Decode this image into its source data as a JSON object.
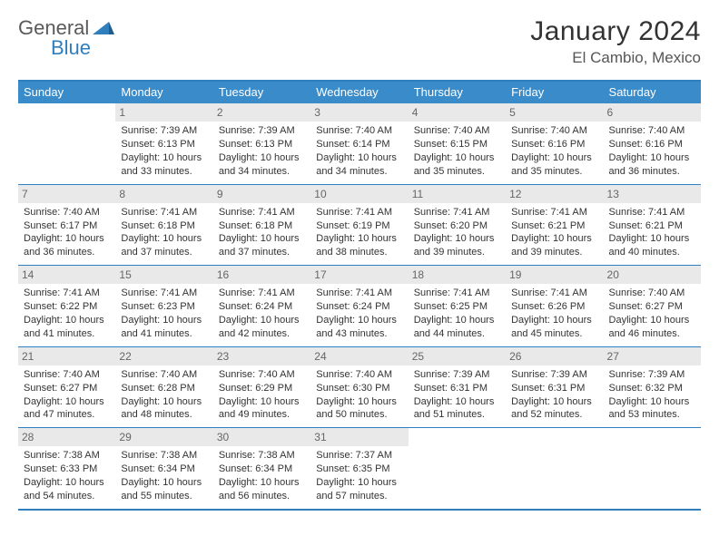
{
  "logo": {
    "part1": "General",
    "part2": "Blue"
  },
  "title": "January 2024",
  "location": "El Cambio, Mexico",
  "colors": {
    "header_bar": "#3a8bc9",
    "border": "#2f7fbf",
    "daynum_bg": "#e9e9e9",
    "text": "#333333",
    "logo_gray": "#5a5a5a",
    "logo_blue": "#2f7fbf"
  },
  "dow": [
    "Sunday",
    "Monday",
    "Tuesday",
    "Wednesday",
    "Thursday",
    "Friday",
    "Saturday"
  ],
  "weeks": [
    [
      {
        "empty": true
      },
      {
        "n": "1",
        "sr": "7:39 AM",
        "ss": "6:13 PM",
        "dl": "10 hours and 33 minutes."
      },
      {
        "n": "2",
        "sr": "7:39 AM",
        "ss": "6:13 PM",
        "dl": "10 hours and 34 minutes."
      },
      {
        "n": "3",
        "sr": "7:40 AM",
        "ss": "6:14 PM",
        "dl": "10 hours and 34 minutes."
      },
      {
        "n": "4",
        "sr": "7:40 AM",
        "ss": "6:15 PM",
        "dl": "10 hours and 35 minutes."
      },
      {
        "n": "5",
        "sr": "7:40 AM",
        "ss": "6:16 PM",
        "dl": "10 hours and 35 minutes."
      },
      {
        "n": "6",
        "sr": "7:40 AM",
        "ss": "6:16 PM",
        "dl": "10 hours and 36 minutes."
      }
    ],
    [
      {
        "n": "7",
        "sr": "7:40 AM",
        "ss": "6:17 PM",
        "dl": "10 hours and 36 minutes."
      },
      {
        "n": "8",
        "sr": "7:41 AM",
        "ss": "6:18 PM",
        "dl": "10 hours and 37 minutes."
      },
      {
        "n": "9",
        "sr": "7:41 AM",
        "ss": "6:18 PM",
        "dl": "10 hours and 37 minutes."
      },
      {
        "n": "10",
        "sr": "7:41 AM",
        "ss": "6:19 PM",
        "dl": "10 hours and 38 minutes."
      },
      {
        "n": "11",
        "sr": "7:41 AM",
        "ss": "6:20 PM",
        "dl": "10 hours and 39 minutes."
      },
      {
        "n": "12",
        "sr": "7:41 AM",
        "ss": "6:21 PM",
        "dl": "10 hours and 39 minutes."
      },
      {
        "n": "13",
        "sr": "7:41 AM",
        "ss": "6:21 PM",
        "dl": "10 hours and 40 minutes."
      }
    ],
    [
      {
        "n": "14",
        "sr": "7:41 AM",
        "ss": "6:22 PM",
        "dl": "10 hours and 41 minutes."
      },
      {
        "n": "15",
        "sr": "7:41 AM",
        "ss": "6:23 PM",
        "dl": "10 hours and 41 minutes."
      },
      {
        "n": "16",
        "sr": "7:41 AM",
        "ss": "6:24 PM",
        "dl": "10 hours and 42 minutes."
      },
      {
        "n": "17",
        "sr": "7:41 AM",
        "ss": "6:24 PM",
        "dl": "10 hours and 43 minutes."
      },
      {
        "n": "18",
        "sr": "7:41 AM",
        "ss": "6:25 PM",
        "dl": "10 hours and 44 minutes."
      },
      {
        "n": "19",
        "sr": "7:41 AM",
        "ss": "6:26 PM",
        "dl": "10 hours and 45 minutes."
      },
      {
        "n": "20",
        "sr": "7:40 AM",
        "ss": "6:27 PM",
        "dl": "10 hours and 46 minutes."
      }
    ],
    [
      {
        "n": "21",
        "sr": "7:40 AM",
        "ss": "6:27 PM",
        "dl": "10 hours and 47 minutes."
      },
      {
        "n": "22",
        "sr": "7:40 AM",
        "ss": "6:28 PM",
        "dl": "10 hours and 48 minutes."
      },
      {
        "n": "23",
        "sr": "7:40 AM",
        "ss": "6:29 PM",
        "dl": "10 hours and 49 minutes."
      },
      {
        "n": "24",
        "sr": "7:40 AM",
        "ss": "6:30 PM",
        "dl": "10 hours and 50 minutes."
      },
      {
        "n": "25",
        "sr": "7:39 AM",
        "ss": "6:31 PM",
        "dl": "10 hours and 51 minutes."
      },
      {
        "n": "26",
        "sr": "7:39 AM",
        "ss": "6:31 PM",
        "dl": "10 hours and 52 minutes."
      },
      {
        "n": "27",
        "sr": "7:39 AM",
        "ss": "6:32 PM",
        "dl": "10 hours and 53 minutes."
      }
    ],
    [
      {
        "n": "28",
        "sr": "7:38 AM",
        "ss": "6:33 PM",
        "dl": "10 hours and 54 minutes."
      },
      {
        "n": "29",
        "sr": "7:38 AM",
        "ss": "6:34 PM",
        "dl": "10 hours and 55 minutes."
      },
      {
        "n": "30",
        "sr": "7:38 AM",
        "ss": "6:34 PM",
        "dl": "10 hours and 56 minutes."
      },
      {
        "n": "31",
        "sr": "7:37 AM",
        "ss": "6:35 PM",
        "dl": "10 hours and 57 minutes."
      },
      {
        "empty": true
      },
      {
        "empty": true
      },
      {
        "empty": true
      }
    ]
  ],
  "labels": {
    "sunrise_prefix": "Sunrise: ",
    "sunset_prefix": "Sunset: ",
    "daylight_prefix": "Daylight: "
  }
}
